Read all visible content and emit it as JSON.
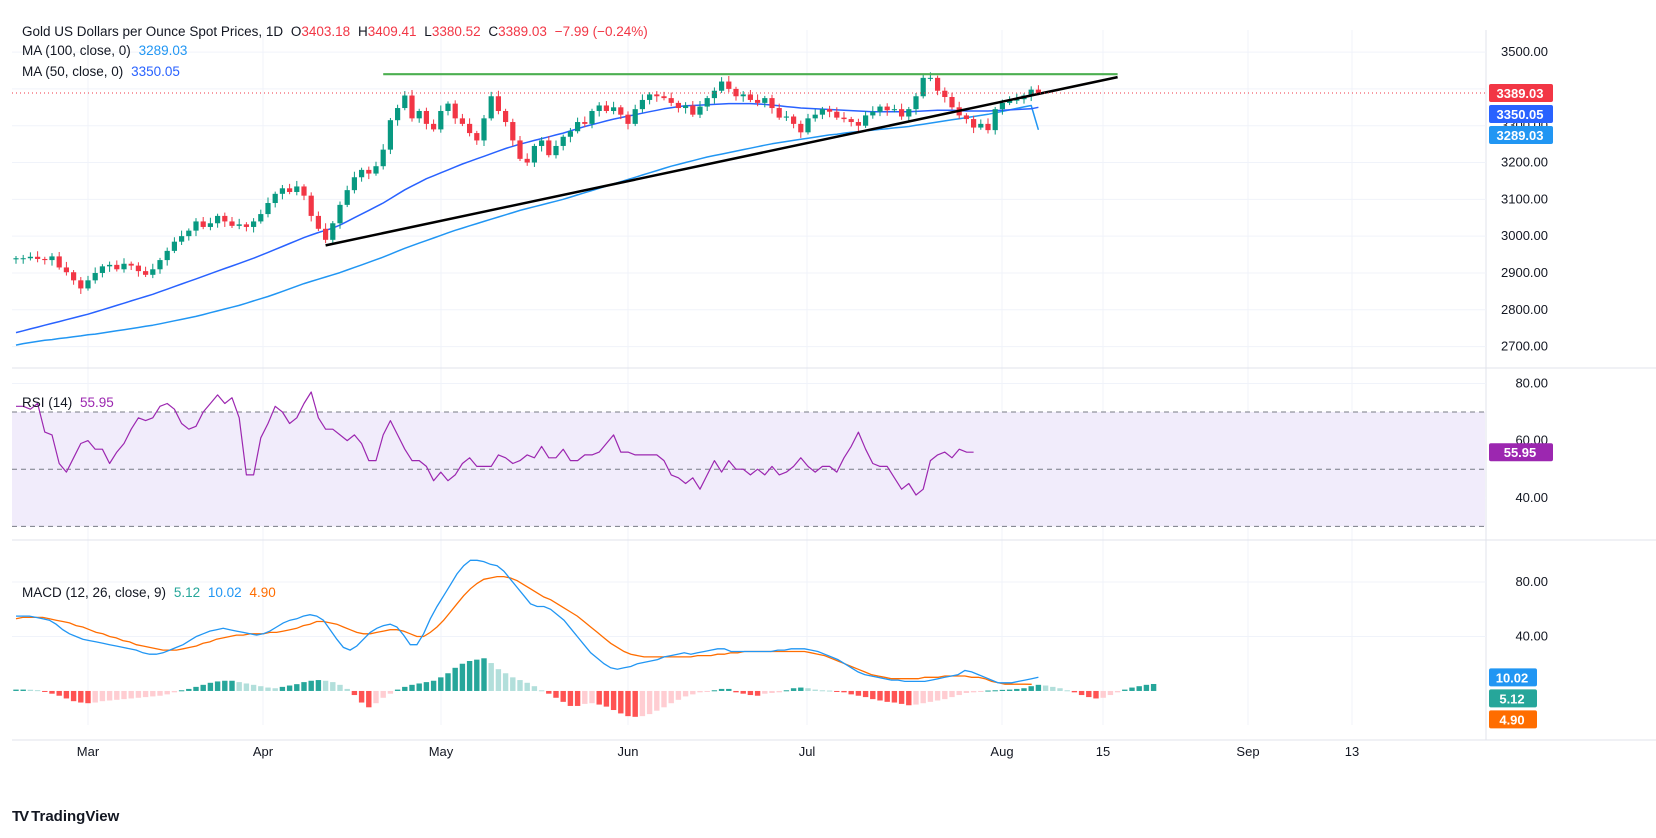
{
  "colors": {
    "bull": "#089981",
    "bear": "#f23645",
    "ma100": "#2196f3",
    "ma50": "#2962ff",
    "resistance": "#4caf50",
    "trendline": "#000000",
    "rsi": "#9c27b0",
    "rsi_band": "#f1ecfb",
    "macd_line": "#2196f3",
    "signal_line": "#ff6d00",
    "hist_pos_strong": "#26a69a",
    "hist_pos_weak": "#b2dfdb",
    "hist_neg_strong": "#ff5252",
    "hist_neg_weak": "#ffcdd2",
    "grid": "#f0f3fa",
    "axis_text": "#131722"
  },
  "legend": {
    "main_title": "Gold US Dollars per Ounce Spot Prices, 1D",
    "o_label": "O",
    "o_value": "3403.18",
    "h_label": "H",
    "h_value": "3409.41",
    "l_label": "L",
    "l_value": "3380.52",
    "c_label": "C",
    "c_value": "3389.03",
    "change": "−7.99 (−0.24%)",
    "ma100_label": "MA (100, close, 0)",
    "ma100_value": "3289.03",
    "ma50_label": "MA (50, close, 0)",
    "ma50_value": "3350.05",
    "rsi_label": "RSI (14)",
    "rsi_value": "55.95",
    "macd_label": "MACD (12, 26, close, 9)",
    "macd_hist_value": "5.12",
    "macd_line_value": "10.02",
    "macd_signal_value": "4.90"
  },
  "brand": {
    "logo_text": "TV",
    "name": "TradingView"
  },
  "chart_data": [
    {
      "type": "candlestick",
      "title": "Gold US Dollars per Ounce Spot Prices, 1D",
      "ylim": [
        2650,
        3560
      ],
      "y_ticks": [
        "2700.00",
        "2800.00",
        "2900.00",
        "3000.00",
        "3100.00",
        "3200.00",
        "3300.00",
        "3400.00",
        "3500.00"
      ],
      "x_ticks": [
        "Mar",
        "Apr",
        "May",
        "Jun",
        "Jul",
        "Aug",
        "15",
        "Sep",
        "13"
      ],
      "price_labels": [
        {
          "text": "3389.03",
          "value": 3389.03,
          "color": "#f23645"
        },
        {
          "text": "3350.05",
          "value": 3350.05,
          "color": "#2962ff"
        },
        {
          "text": "3289.03",
          "value": 3289.03,
          "color": "#2196f3"
        }
      ],
      "last_close": 3389.03,
      "close": [
        2940,
        2940,
        2944,
        2938,
        2935,
        2945,
        2915,
        2902,
        2880,
        2858,
        2880,
        2900,
        2918,
        2922,
        2910,
        2925,
        2920,
        2905,
        2895,
        2910,
        2935,
        2960,
        2985,
        3000,
        3015,
        3040,
        3025,
        3035,
        3055,
        3040,
        3028,
        3032,
        3025,
        3040,
        3060,
        3090,
        3115,
        3130,
        3120,
        3135,
        3110,
        3055,
        3020,
        2990,
        3035,
        3085,
        3125,
        3160,
        3180,
        3170,
        3190,
        3235,
        3315,
        3348,
        3382,
        3320,
        3340,
        3305,
        3290,
        3340,
        3360,
        3320,
        3305,
        3280,
        3260,
        3320,
        3380,
        3340,
        3310,
        3260,
        3210,
        3200,
        3245,
        3260,
        3220,
        3245,
        3270,
        3285,
        3310,
        3305,
        3340,
        3355,
        3340,
        3350,
        3330,
        3305,
        3345,
        3370,
        3385,
        3380,
        3375,
        3362,
        3348,
        3355,
        3330,
        3352,
        3375,
        3395,
        3420,
        3400,
        3380,
        3385,
        3370,
        3362,
        3375,
        3348,
        3322,
        3325,
        3305,
        3282,
        3320,
        3330,
        3345,
        3338,
        3322,
        3318,
        3310,
        3300,
        3328,
        3338,
        3352,
        3342,
        3345,
        3325,
        3345,
        3380,
        3430,
        3430,
        3395,
        3378,
        3350,
        3328,
        3318,
        3295,
        3305,
        3288,
        3345,
        3362,
        3368,
        3372,
        3382,
        3398,
        3389.03
      ],
      "ma100": [
        2704,
        2708,
        2711,
        2714,
        2717,
        2719,
        2722,
        2724,
        2727,
        2729,
        2732,
        2734,
        2737,
        2740,
        2743,
        2746,
        2749,
        2752,
        2755,
        2758,
        2762,
        2766,
        2770,
        2774,
        2778,
        2782,
        2787,
        2792,
        2797,
        2802,
        2807,
        2812,
        2818,
        2824,
        2830,
        2836,
        2843,
        2850,
        2857,
        2864,
        2871,
        2877,
        2883,
        2889,
        2895,
        2901,
        2908,
        2915,
        2922,
        2929,
        2936,
        2943,
        2951,
        2959,
        2967,
        2974,
        2981,
        2988,
        2995,
        3002,
        3009,
        3016,
        3022,
        3028,
        3034,
        3040,
        3046,
        3052,
        3058,
        3064,
        3070,
        3075,
        3080,
        3085,
        3090,
        3095,
        3100,
        3106,
        3112,
        3118,
        3124,
        3130,
        3136,
        3142,
        3148,
        3154,
        3160,
        3166,
        3172,
        3178,
        3184,
        3190,
        3195,
        3200,
        3205,
        3210,
        3215,
        3219,
        3223,
        3227,
        3231,
        3235,
        3239,
        3243,
        3247,
        3251,
        3254,
        3257,
        3260,
        3263,
        3266,
        3269,
        3272,
        3275,
        3277,
        3280,
        3282,
        3284,
        3286,
        3288,
        3290,
        3292,
        3294,
        3296,
        3298,
        3301,
        3304,
        3307,
        3310,
        3313,
        3316,
        3319,
        3322,
        3325,
        3328,
        3331,
        3335,
        3339,
        3343,
        3347,
        3351,
        3355,
        3289.03
      ],
      "ma50": [
        2738,
        2743,
        2748,
        2753,
        2758,
        2763,
        2768,
        2773,
        2778,
        2783,
        2788,
        2794,
        2800,
        2806,
        2812,
        2818,
        2824,
        2830,
        2836,
        2842,
        2849,
        2856,
        2863,
        2870,
        2877,
        2884,
        2891,
        2898,
        2905,
        2912,
        2919,
        2926,
        2933,
        2940,
        2948,
        2956,
        2964,
        2972,
        2980,
        2988,
        2996,
        3003,
        3010,
        3016,
        3022,
        3030,
        3040,
        3050,
        3060,
        3070,
        3080,
        3090,
        3102,
        3114,
        3126,
        3136,
        3146,
        3156,
        3164,
        3172,
        3180,
        3188,
        3196,
        3203,
        3210,
        3217,
        3224,
        3231,
        3238,
        3244,
        3250,
        3255,
        3260,
        3265,
        3270,
        3275,
        3280,
        3286,
        3292,
        3298,
        3303,
        3308,
        3313,
        3318,
        3322,
        3326,
        3330,
        3334,
        3338,
        3342,
        3346,
        3349,
        3352,
        3354,
        3355,
        3356,
        3357,
        3358,
        3359,
        3360,
        3360,
        3360,
        3360,
        3359,
        3358,
        3356,
        3354,
        3352,
        3350,
        3348,
        3347,
        3346,
        3345,
        3344,
        3343,
        3342,
        3341,
        3340,
        3339,
        3338,
        3338,
        3338,
        3338,
        3338,
        3338,
        3339,
        3340,
        3341,
        3342,
        3342,
        3342,
        3341,
        3340,
        3340,
        3340,
        3340,
        3341,
        3342,
        3343,
        3344,
        3345,
        3346,
        3350.05
      ],
      "trendline": {
        "start": [
          43,
          2975
        ],
        "end": [
          153,
          3432
        ]
      },
      "resistance_line": {
        "start": [
          51,
          3440
        ],
        "end": [
          153,
          3440
        ]
      }
    },
    {
      "type": "line",
      "title": "RSI (14)",
      "ylim": [
        27,
        84
      ],
      "y_ticks": [
        "40.00",
        "60.00",
        "80.00"
      ],
      "bands": {
        "upper": 70,
        "middle": 50,
        "lower": 30
      },
      "last_value": 55.95,
      "values": [
        72,
        72,
        71,
        73,
        63,
        62,
        52,
        49,
        54,
        59,
        60,
        57,
        57,
        52,
        56,
        59,
        64,
        68,
        67,
        68,
        72,
        73,
        71,
        66,
        64,
        65,
        70,
        73,
        76,
        73,
        75,
        68,
        48,
        48,
        61,
        66,
        72,
        70,
        66,
        68,
        73,
        77,
        68,
        64,
        64,
        62,
        60,
        62,
        59,
        53,
        53,
        62,
        67,
        62,
        57,
        53,
        53,
        51,
        46,
        49,
        46,
        48,
        52,
        54,
        51,
        51,
        51,
        55,
        54,
        52,
        53,
        55,
        54,
        58,
        54,
        54,
        57,
        53,
        53,
        55,
        55,
        56,
        59,
        62,
        56,
        56,
        55,
        55,
        55,
        55,
        53,
        48,
        47,
        45,
        47,
        43,
        48,
        53,
        49,
        53,
        50,
        50,
        48,
        50,
        48,
        51,
        48,
        49,
        51,
        54,
        51,
        49,
        51,
        51,
        49,
        54,
        58,
        63,
        57,
        52,
        51,
        51,
        47,
        43,
        45,
        41,
        43,
        53,
        55,
        56,
        54,
        57,
        56,
        55.95
      ],
      "series": [
        {
          "name": "RSI (14)",
          "color": "#9c27b0"
        }
      ]
    },
    {
      "type": "line+bar",
      "title": "MACD (12, 26, close, 9)",
      "ylim": [
        -25,
        105
      ],
      "y_ticks": [
        "40.00",
        "80.00"
      ],
      "last_values": {
        "macd": 10.02,
        "signal": 4.9,
        "histogram": 5.12
      },
      "macd": [
        55,
        55,
        55,
        54,
        53,
        52,
        49,
        45,
        42,
        40,
        38,
        37,
        36,
        35,
        34,
        33,
        32,
        31,
        30,
        28,
        27,
        27,
        28,
        30,
        32,
        34,
        37,
        40,
        42,
        44,
        45,
        46,
        45,
        44,
        43,
        42,
        41,
        42,
        44,
        47,
        50,
        52,
        53,
        55,
        56,
        55,
        52,
        45,
        38,
        32,
        30,
        33,
        38,
        43,
        46,
        48,
        49,
        47,
        41,
        34,
        34,
        42,
        53,
        62,
        70,
        78,
        86,
        92,
        96,
        96,
        95,
        93,
        92,
        88,
        82,
        76,
        70,
        64,
        62,
        62,
        60,
        56,
        52,
        46,
        40,
        34,
        28,
        24,
        20,
        17,
        16,
        17,
        18,
        20,
        21,
        22,
        23,
        25,
        26,
        27,
        28,
        27,
        28,
        29,
        30,
        31,
        31,
        29,
        29,
        29,
        29,
        29,
        29,
        29,
        30,
        30,
        31,
        31,
        31,
        30,
        29,
        27,
        25,
        23,
        20,
        17,
        14,
        12,
        11,
        10,
        9,
        8,
        8,
        7,
        7,
        7,
        7,
        8,
        9,
        10,
        11,
        12,
        15,
        14,
        12,
        10,
        8,
        6,
        6,
        6,
        7,
        8,
        9,
        10.02
      ],
      "signal": [
        53,
        54,
        54,
        54,
        54,
        53,
        52,
        51,
        50,
        48,
        47,
        45,
        43,
        42,
        40,
        39,
        37,
        36,
        34,
        33,
        32,
        31,
        30,
        30,
        30,
        31,
        32,
        33,
        35,
        36,
        38,
        39,
        40,
        41,
        41,
        42,
        42,
        42,
        43,
        43,
        44,
        45,
        46,
        48,
        49,
        51,
        51,
        50,
        49,
        47,
        45,
        43,
        42,
        42,
        43,
        44,
        45,
        45,
        44,
        42,
        40,
        40,
        43,
        47,
        52,
        58,
        64,
        70,
        75,
        79,
        82,
        83,
        84,
        84,
        83,
        81,
        78,
        75,
        72,
        69,
        67,
        64,
        61,
        58,
        55,
        51,
        47,
        43,
        39,
        35,
        32,
        29,
        27,
        26,
        25,
        25,
        25,
        25,
        25,
        25,
        25,
        25,
        26,
        26,
        26,
        27,
        27,
        28,
        28,
        29,
        29,
        29,
        29,
        29,
        29,
        29,
        29,
        29,
        29,
        28,
        27,
        26,
        24,
        22,
        20,
        18,
        16,
        14,
        12,
        11,
        10,
        9,
        9,
        9,
        9,
        9,
        10,
        10,
        10,
        11,
        11,
        11,
        11,
        10,
        10,
        9,
        7,
        6,
        5,
        5,
        5,
        5,
        4.9
      ],
      "histogram": [
        1.0,
        1.0,
        0.9,
        0.6,
        -0.5,
        -2.0,
        -3.5,
        -5.5,
        -7.5,
        -8.5,
        -9.0,
        -8.5,
        -7.5,
        -7.0,
        -6.5,
        -6.0,
        -5.5,
        -5.0,
        -4.5,
        -4.0,
        -3.5,
        -2.5,
        -1.0,
        0.5,
        1.5,
        3.0,
        4.5,
        6.0,
        7.0,
        7.5,
        7.5,
        6.5,
        5.5,
        4.5,
        3.5,
        2.5,
        2.0,
        3.0,
        4.0,
        5.0,
        6.5,
        7.5,
        8.0,
        7.5,
        6.5,
        4.5,
        1.5,
        -3.0,
        -8.5,
        -12.0,
        -9.0,
        -5.0,
        -2.0,
        1.0,
        3.0,
        4.5,
        5.5,
        6.5,
        7.5,
        10.0,
        13.0,
        17.0,
        20.0,
        22.0,
        23.0,
        24.0,
        20.5,
        16.0,
        13.0,
        10.0,
        8.0,
        6.0,
        3.5,
        0.5,
        -2.0,
        -5.0,
        -8.0,
        -11.0,
        -11.0,
        -9.5,
        -9.0,
        -10.0,
        -11.5,
        -14.0,
        -16.5,
        -18.5,
        -19.0,
        -18.5,
        -17.0,
        -14.5,
        -12.0,
        -9.0,
        -6.5,
        -4.0,
        -2.5,
        -1.0,
        -0.5,
        0.5,
        1.5,
        1.5,
        -1.0,
        -2.0,
        -3.0,
        -3.5,
        -2.0,
        -1.5,
        -1.0,
        0.5,
        2.0,
        2.5,
        2.0,
        1.0,
        0.5,
        0.3,
        -0.5,
        -1.0,
        -2.5,
        -3.5,
        -4.5,
        -6.0,
        -7.0,
        -8.0,
        -8.5,
        -9.5,
        -10.5,
        -10.0,
        -9.0,
        -8.0,
        -7.0,
        -6.0,
        -4.5,
        -3.0,
        -1.5,
        -1.0,
        -0.5,
        0.3,
        0.5,
        0.8,
        1.0,
        1.5,
        2.0,
        3.5,
        4.5,
        4.0,
        3.0,
        2.0,
        0.5,
        -1.0,
        -3.0,
        -4.5,
        -5.5,
        -5.0,
        -3.0,
        -1.0,
        1.0,
        2.5,
        3.5,
        4.5,
        5.12
      ],
      "series": [
        {
          "name": "MACD",
          "color": "#2196f3"
        },
        {
          "name": "Signal",
          "color": "#ff6d00"
        },
        {
          "name": "Histogram",
          "color": "#26a69a"
        }
      ]
    }
  ]
}
